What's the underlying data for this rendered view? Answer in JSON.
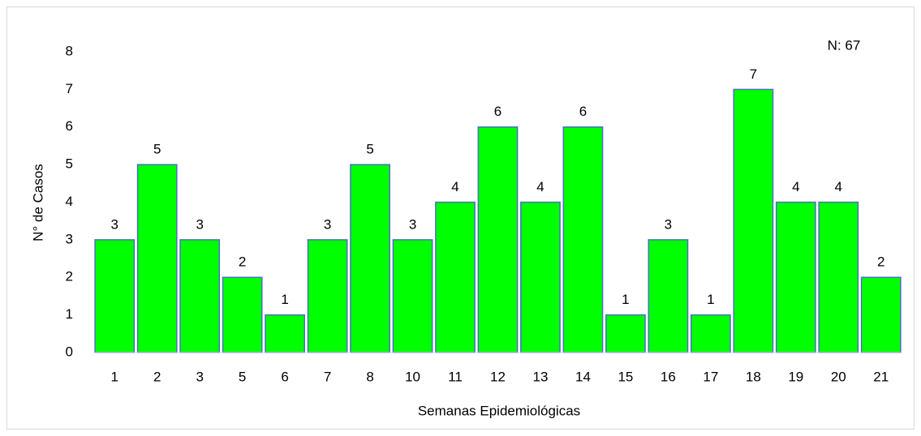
{
  "chart_data": {
    "type": "bar",
    "annotation": "N: 67",
    "xlabel": "Semanas Epidemiológicas",
    "ylabel": "N° de Casos",
    "categories": [
      "1",
      "2",
      "3",
      "5",
      "6",
      "7",
      "8",
      "10",
      "11",
      "12",
      "13",
      "14",
      "15",
      "16",
      "17",
      "18",
      "19",
      "20",
      "21"
    ],
    "values": [
      3,
      5,
      3,
      2,
      1,
      3,
      5,
      3,
      4,
      6,
      4,
      6,
      1,
      3,
      1,
      7,
      4,
      4,
      2
    ],
    "color": "#00ff00",
    "edgecolor": "#4a6fc4",
    "ylim": [
      0,
      8
    ],
    "yticks": [
      0,
      1,
      2,
      3,
      4,
      5,
      6,
      7,
      8
    ],
    "grid": false
  }
}
